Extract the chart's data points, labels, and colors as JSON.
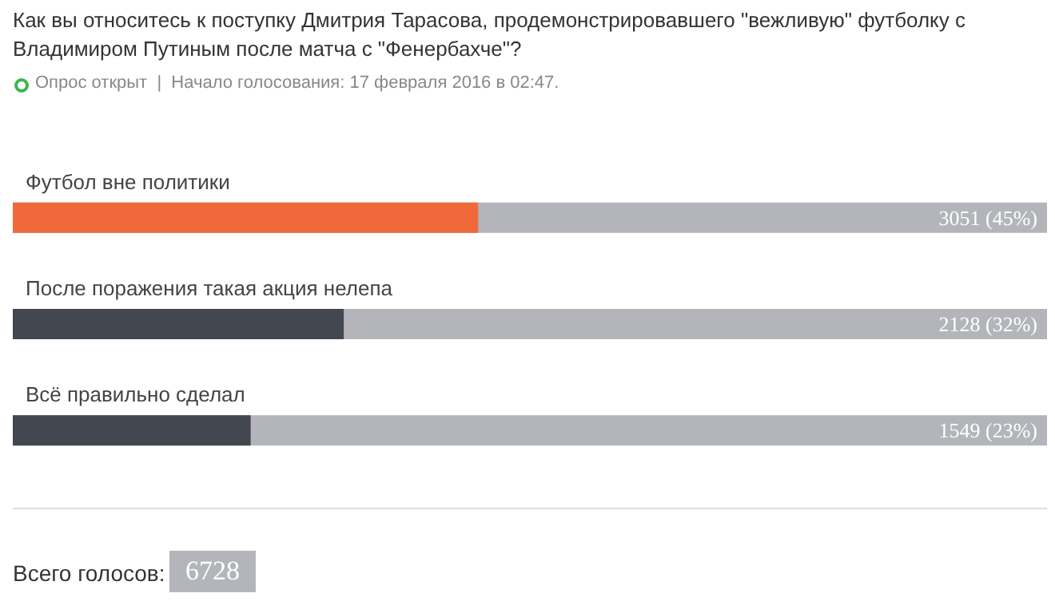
{
  "chart_data": {
    "type": "bar",
    "orientation": "horizontal",
    "title": "Как вы относитесь к поступку Дмитрия Тарасова, продемонстрировавшего \"вежливую\" футболку с Владимиром Путиным после матча с \"Фенербахче\"?",
    "subtitle": "Опрос открыт  |  Начало голосования: 17 февраля 2016 в 02:47.",
    "categories": [
      "Футбол вне политики",
      "После поражения такая акция нелепа",
      "Всё правильно сделал"
    ],
    "values": [
      45,
      32,
      23
    ],
    "colors": [
      "#f0693a",
      "#43474f",
      "#43474f"
    ],
    "value_labels": [
      "3051 (45%)",
      "2128 (32%)",
      "1549 (23%)"
    ],
    "xlim": [
      0,
      100
    ],
    "annotations": [
      "Всего голосов:",
      "6728"
    ]
  }
}
